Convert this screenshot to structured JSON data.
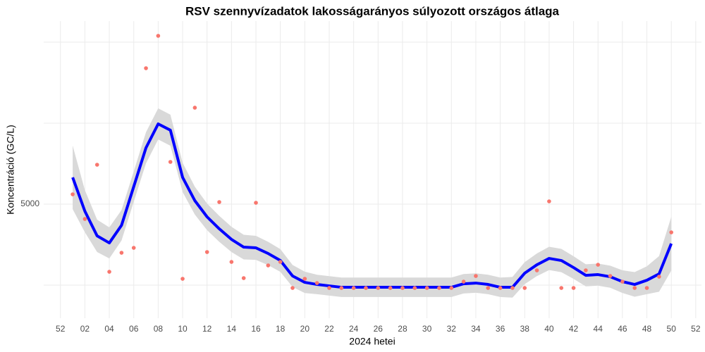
{
  "chart_data": {
    "type": "scatter",
    "title": "RSV szennyvízadatok lakosságarányos súlyozott országos átlaga",
    "x_label": "2024 hetei",
    "y_label": "Koncentráció (GC/L)",
    "x": [
      1,
      2,
      3,
      4,
      5,
      6,
      7,
      8,
      9,
      10,
      11,
      12,
      13,
      14,
      15,
      16,
      17,
      18,
      19,
      20,
      21,
      22,
      23,
      24,
      25,
      26,
      27,
      28,
      29,
      30,
      31,
      32,
      33,
      34,
      35,
      36,
      37,
      38,
      39,
      40,
      41,
      42,
      43,
      44,
      45,
      46,
      47,
      48,
      49,
      50
    ],
    "series": [
      {
        "color": "#f8766d",
        "values": [
          5304,
          4543,
          6217,
          2913,
          3500,
          3652,
          9196,
          10196,
          6304,
          2696,
          7978,
          3522,
          5065,
          3217,
          2717,
          5043,
          3109,
          3217,
          2413,
          2696,
          2565,
          2413,
          2413,
          2413,
          2413,
          2413,
          2413,
          2413,
          2413,
          2413,
          2413,
          2413,
          2609,
          2783,
          2413,
          2413,
          2413,
          2413,
          2957,
          5087,
          2413,
          2413,
          2957,
          3130,
          2783,
          2609,
          2413,
          2413,
          2761,
          4130
        ]
      }
    ],
    "smooth": {
      "color": "#0000ff",
      "band_color": "#d9d9d9",
      "values": [
        5826,
        4783,
        4022,
        3804,
        4348,
        5543,
        6739,
        7478,
        7283,
        5826,
        5109,
        4609,
        4239,
        3913,
        3674,
        3652,
        3478,
        3261,
        2783,
        2587,
        2522,
        2478,
        2435,
        2435,
        2435,
        2435,
        2435,
        2435,
        2435,
        2435,
        2435,
        2435,
        2543,
        2565,
        2522,
        2435,
        2435,
        2870,
        3130,
        3326,
        3261,
        3043,
        2804,
        2826,
        2761,
        2609,
        2522,
        2652,
        2848,
        3783
      ],
      "lower": [
        4846,
        4133,
        3522,
        3324,
        3878,
        5073,
        6259,
        6998,
        6803,
        5376,
        4679,
        4199,
        3839,
        3523,
        3294,
        3282,
        3118,
        2911,
        2443,
        2257,
        2222,
        2178,
        2135,
        2135,
        2135,
        2135,
        2135,
        2135,
        2135,
        2135,
        2135,
        2135,
        2243,
        2265,
        2222,
        2135,
        2115,
        2530,
        2780,
        2966,
        2901,
        2693,
        2464,
        2486,
        2421,
        2259,
        2142,
        2222,
        2298,
        2953
      ],
      "upper": [
        6806,
        5433,
        4522,
        4284,
        4818,
        6013,
        7219,
        7958,
        7763,
        6276,
        5539,
        5019,
        4639,
        4303,
        4054,
        4022,
        3838,
        3611,
        3123,
        2917,
        2822,
        2778,
        2735,
        2735,
        2735,
        2735,
        2735,
        2735,
        2735,
        2735,
        2735,
        2735,
        2843,
        2865,
        2822,
        2735,
        2755,
        3210,
        3480,
        3686,
        3621,
        3393,
        3144,
        3166,
        3101,
        2959,
        2902,
        3082,
        3398,
        4613
      ]
    },
    "xlim": [
      -1.37,
      52.47
    ],
    "ylim": [
      1480,
      10650
    ],
    "xticks": [
      {
        "value": 0,
        "label": "52"
      },
      {
        "value": 2,
        "label": "02"
      },
      {
        "value": 4,
        "label": "04"
      },
      {
        "value": 6,
        "label": "06"
      },
      {
        "value": 8,
        "label": "08"
      },
      10,
      12,
      14,
      16,
      18,
      20,
      22,
      24,
      26,
      28,
      30,
      32,
      34,
      36,
      38,
      40,
      42,
      44,
      46,
      48,
      50,
      52
    ],
    "yticks": [
      5000
    ],
    "minor_yticks": [
      2500,
      7500,
      10000
    ],
    "grid": true
  }
}
